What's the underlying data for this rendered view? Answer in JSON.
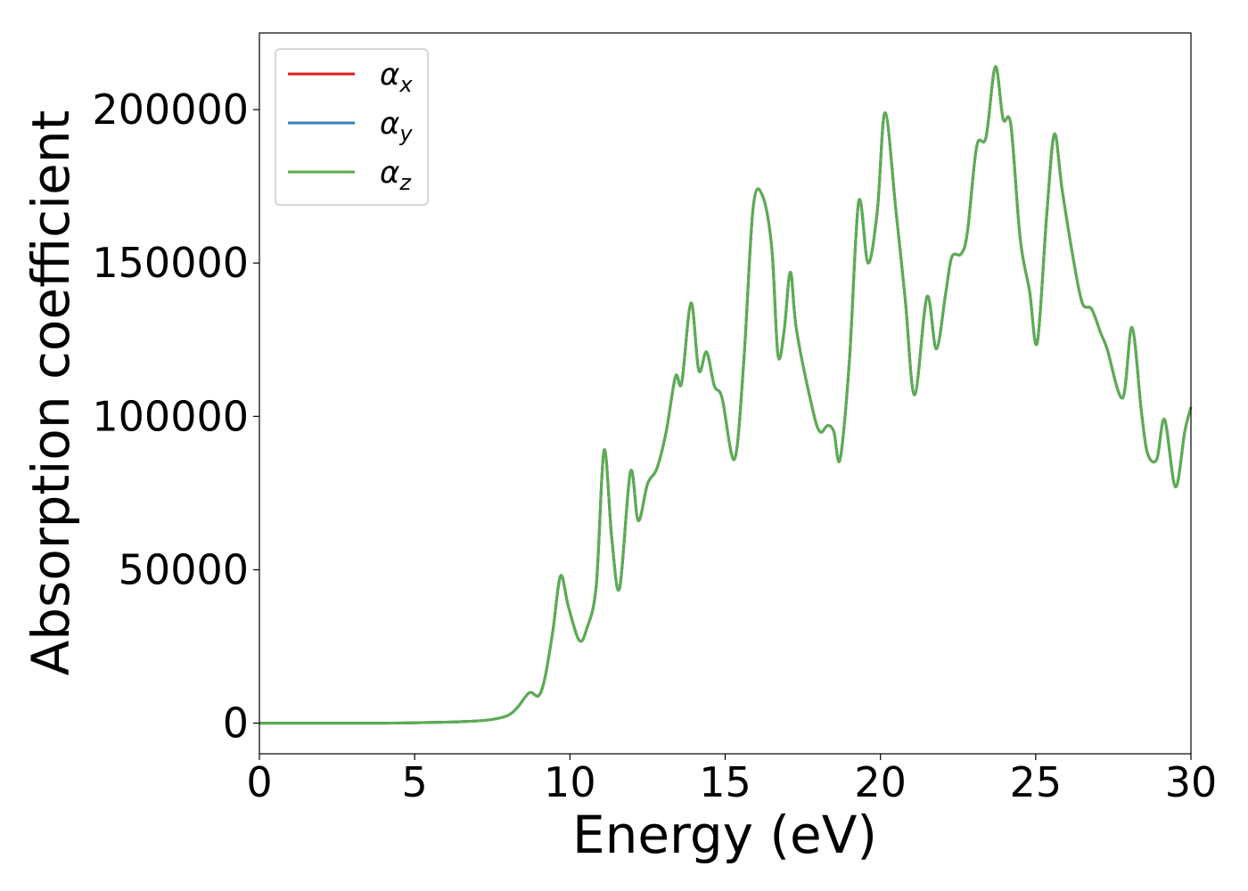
{
  "chart_data": {
    "type": "line",
    "xlabel": "Energy (eV)",
    "ylabel": "Absorption coefficient",
    "xlim": [
      0,
      30
    ],
    "ylim": [
      -10000,
      225000
    ],
    "xticks": [
      0,
      5,
      10,
      15,
      20,
      25,
      30
    ],
    "xtick_labels": [
      "0",
      "5",
      "10",
      "15",
      "20",
      "25",
      "30"
    ],
    "yticks": [
      0,
      50000,
      100000,
      150000,
      200000
    ],
    "ytick_labels": [
      "0",
      "50000",
      "100000",
      "150000",
      "200000"
    ],
    "grid": false,
    "legend_position": "top-left",
    "x": [
      0,
      2,
      4,
      6,
      7,
      7.5,
      8,
      8.3,
      8.6,
      8.75,
      9.0,
      9.2,
      9.45,
      9.7,
      9.95,
      10.3,
      10.55,
      10.85,
      11.1,
      11.35,
      11.6,
      11.95,
      12.2,
      12.5,
      12.8,
      13.1,
      13.4,
      13.6,
      13.9,
      14.15,
      14.4,
      14.65,
      14.9,
      15.3,
      15.6,
      15.9,
      16.2,
      16.5,
      16.7,
      16.9,
      17.1,
      17.3,
      17.8,
      18.05,
      18.3,
      18.5,
      18.7,
      19.0,
      19.3,
      19.6,
      19.9,
      20.15,
      20.5,
      20.8,
      21.1,
      21.5,
      21.8,
      22.1,
      22.3,
      22.6,
      22.8,
      23.1,
      23.4,
      23.7,
      23.95,
      24.2,
      24.5,
      24.8,
      25.05,
      25.35,
      25.6,
      25.85,
      26.2,
      26.5,
      26.8,
      27.1,
      27.3,
      27.8,
      28.1,
      28.4,
      28.6,
      28.9,
      29.15,
      29.5,
      29.8,
      30.0
    ],
    "series": [
      {
        "name": "αx",
        "color": "#e41a1c",
        "y": [
          0,
          0,
          0,
          300,
          700,
          1200,
          2500,
          5000,
          9000,
          10000,
          9000,
          15000,
          30000,
          48000,
          38000,
          27000,
          31000,
          45000,
          89000,
          60000,
          44000,
          82000,
          66000,
          78000,
          83000,
          95000,
          113000,
          111000,
          137000,
          115000,
          121000,
          110000,
          106000,
          86000,
          118000,
          168000,
          172000,
          155000,
          120000,
          128000,
          147000,
          128000,
          103000,
          95000,
          97000,
          95000,
          86000,
          118000,
          170000,
          150000,
          167000,
          199000,
          167000,
          138000,
          107000,
          139000,
          122000,
          140000,
          152000,
          153000,
          160000,
          188000,
          191000,
          214000,
          197000,
          195000,
          158000,
          141000,
          124000,
          165000,
          192000,
          174000,
          152000,
          137000,
          135000,
          127000,
          122000,
          106000,
          129000,
          102000,
          88000,
          86000,
          99000,
          77000,
          95000,
          103000
        ]
      },
      {
        "name": "αy",
        "color": "#377eb8",
        "y": [
          0,
          0,
          0,
          300,
          700,
          1200,
          2500,
          5000,
          9000,
          10000,
          9000,
          15000,
          30000,
          48000,
          38000,
          27000,
          31000,
          45000,
          89000,
          60000,
          44000,
          82000,
          66000,
          78000,
          83000,
          95000,
          113000,
          111000,
          137000,
          115000,
          121000,
          110000,
          106000,
          86000,
          118000,
          168000,
          172000,
          155000,
          120000,
          128000,
          147000,
          128000,
          103000,
          95000,
          97000,
          95000,
          86000,
          118000,
          170000,
          150000,
          167000,
          199000,
          167000,
          138000,
          107000,
          139000,
          122000,
          140000,
          152000,
          153000,
          160000,
          188000,
          191000,
          214000,
          197000,
          195000,
          158000,
          141000,
          124000,
          165000,
          192000,
          174000,
          152000,
          137000,
          135000,
          127000,
          122000,
          106000,
          129000,
          102000,
          88000,
          86000,
          99000,
          77000,
          95000,
          103000
        ]
      },
      {
        "name": "αz",
        "color": "#5aae50",
        "y": [
          0,
          0,
          0,
          300,
          700,
          1200,
          2500,
          5000,
          9000,
          10000,
          9000,
          15000,
          30000,
          48000,
          38000,
          27000,
          31000,
          45000,
          89000,
          60000,
          44000,
          82000,
          66000,
          78000,
          83000,
          95000,
          113000,
          111000,
          137000,
          115000,
          121000,
          110000,
          106000,
          86000,
          118000,
          168000,
          172000,
          155000,
          120000,
          128000,
          147000,
          128000,
          103000,
          95000,
          97000,
          95000,
          86000,
          118000,
          170000,
          150000,
          167000,
          199000,
          167000,
          138000,
          107000,
          139000,
          122000,
          140000,
          152000,
          153000,
          160000,
          188000,
          191000,
          214000,
          197000,
          195000,
          158000,
          141000,
          124000,
          165000,
          192000,
          174000,
          152000,
          137000,
          135000,
          127000,
          122000,
          106000,
          129000,
          102000,
          88000,
          86000,
          99000,
          77000,
          95000,
          103000
        ]
      }
    ],
    "legend": [
      {
        "symbol": "α",
        "sub": "x",
        "color": "#e41a1c"
      },
      {
        "symbol": "α",
        "sub": "y",
        "color": "#377eb8"
      },
      {
        "symbol": "α",
        "sub": "z",
        "color": "#5aae50"
      }
    ]
  }
}
